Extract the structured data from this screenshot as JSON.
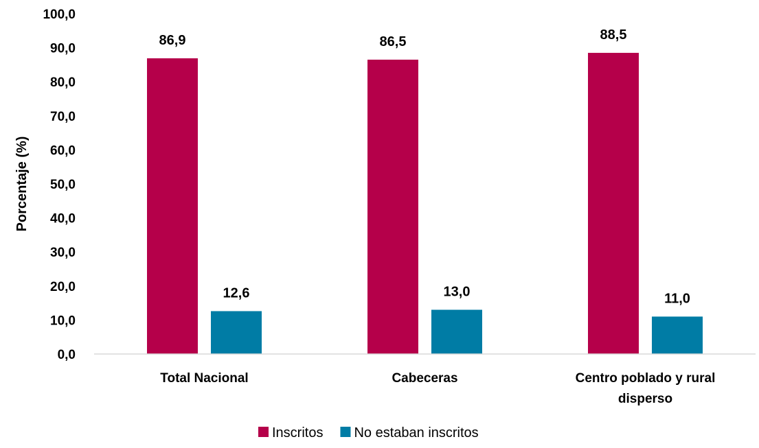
{
  "chart_data": {
    "type": "bar",
    "title": "",
    "xlabel": "",
    "ylabel": "Porcentaje (%)",
    "ylim": [
      0,
      100
    ],
    "y_ticks": [
      "0,0",
      "10,0",
      "20,0",
      "30,0",
      "40,0",
      "50,0",
      "60,0",
      "70,0",
      "80,0",
      "90,0",
      "100,0"
    ],
    "categories": [
      [
        "Total Nacional"
      ],
      [
        "Cabeceras"
      ],
      [
        "Centro poblado y rural",
        "disperso"
      ]
    ],
    "series": [
      {
        "name": "Inscritos",
        "color": "#B5004A",
        "values": [
          86.9,
          86.5,
          88.5
        ],
        "labels": [
          "86,9",
          "86,5",
          "88,5"
        ]
      },
      {
        "name": "No estaban inscritos",
        "color": "#007CA5",
        "values": [
          12.6,
          13.0,
          11.0
        ],
        "labels": [
          "12,6",
          "13,0",
          "11,0"
        ]
      }
    ],
    "grid": false,
    "legend_position": "bottom"
  }
}
